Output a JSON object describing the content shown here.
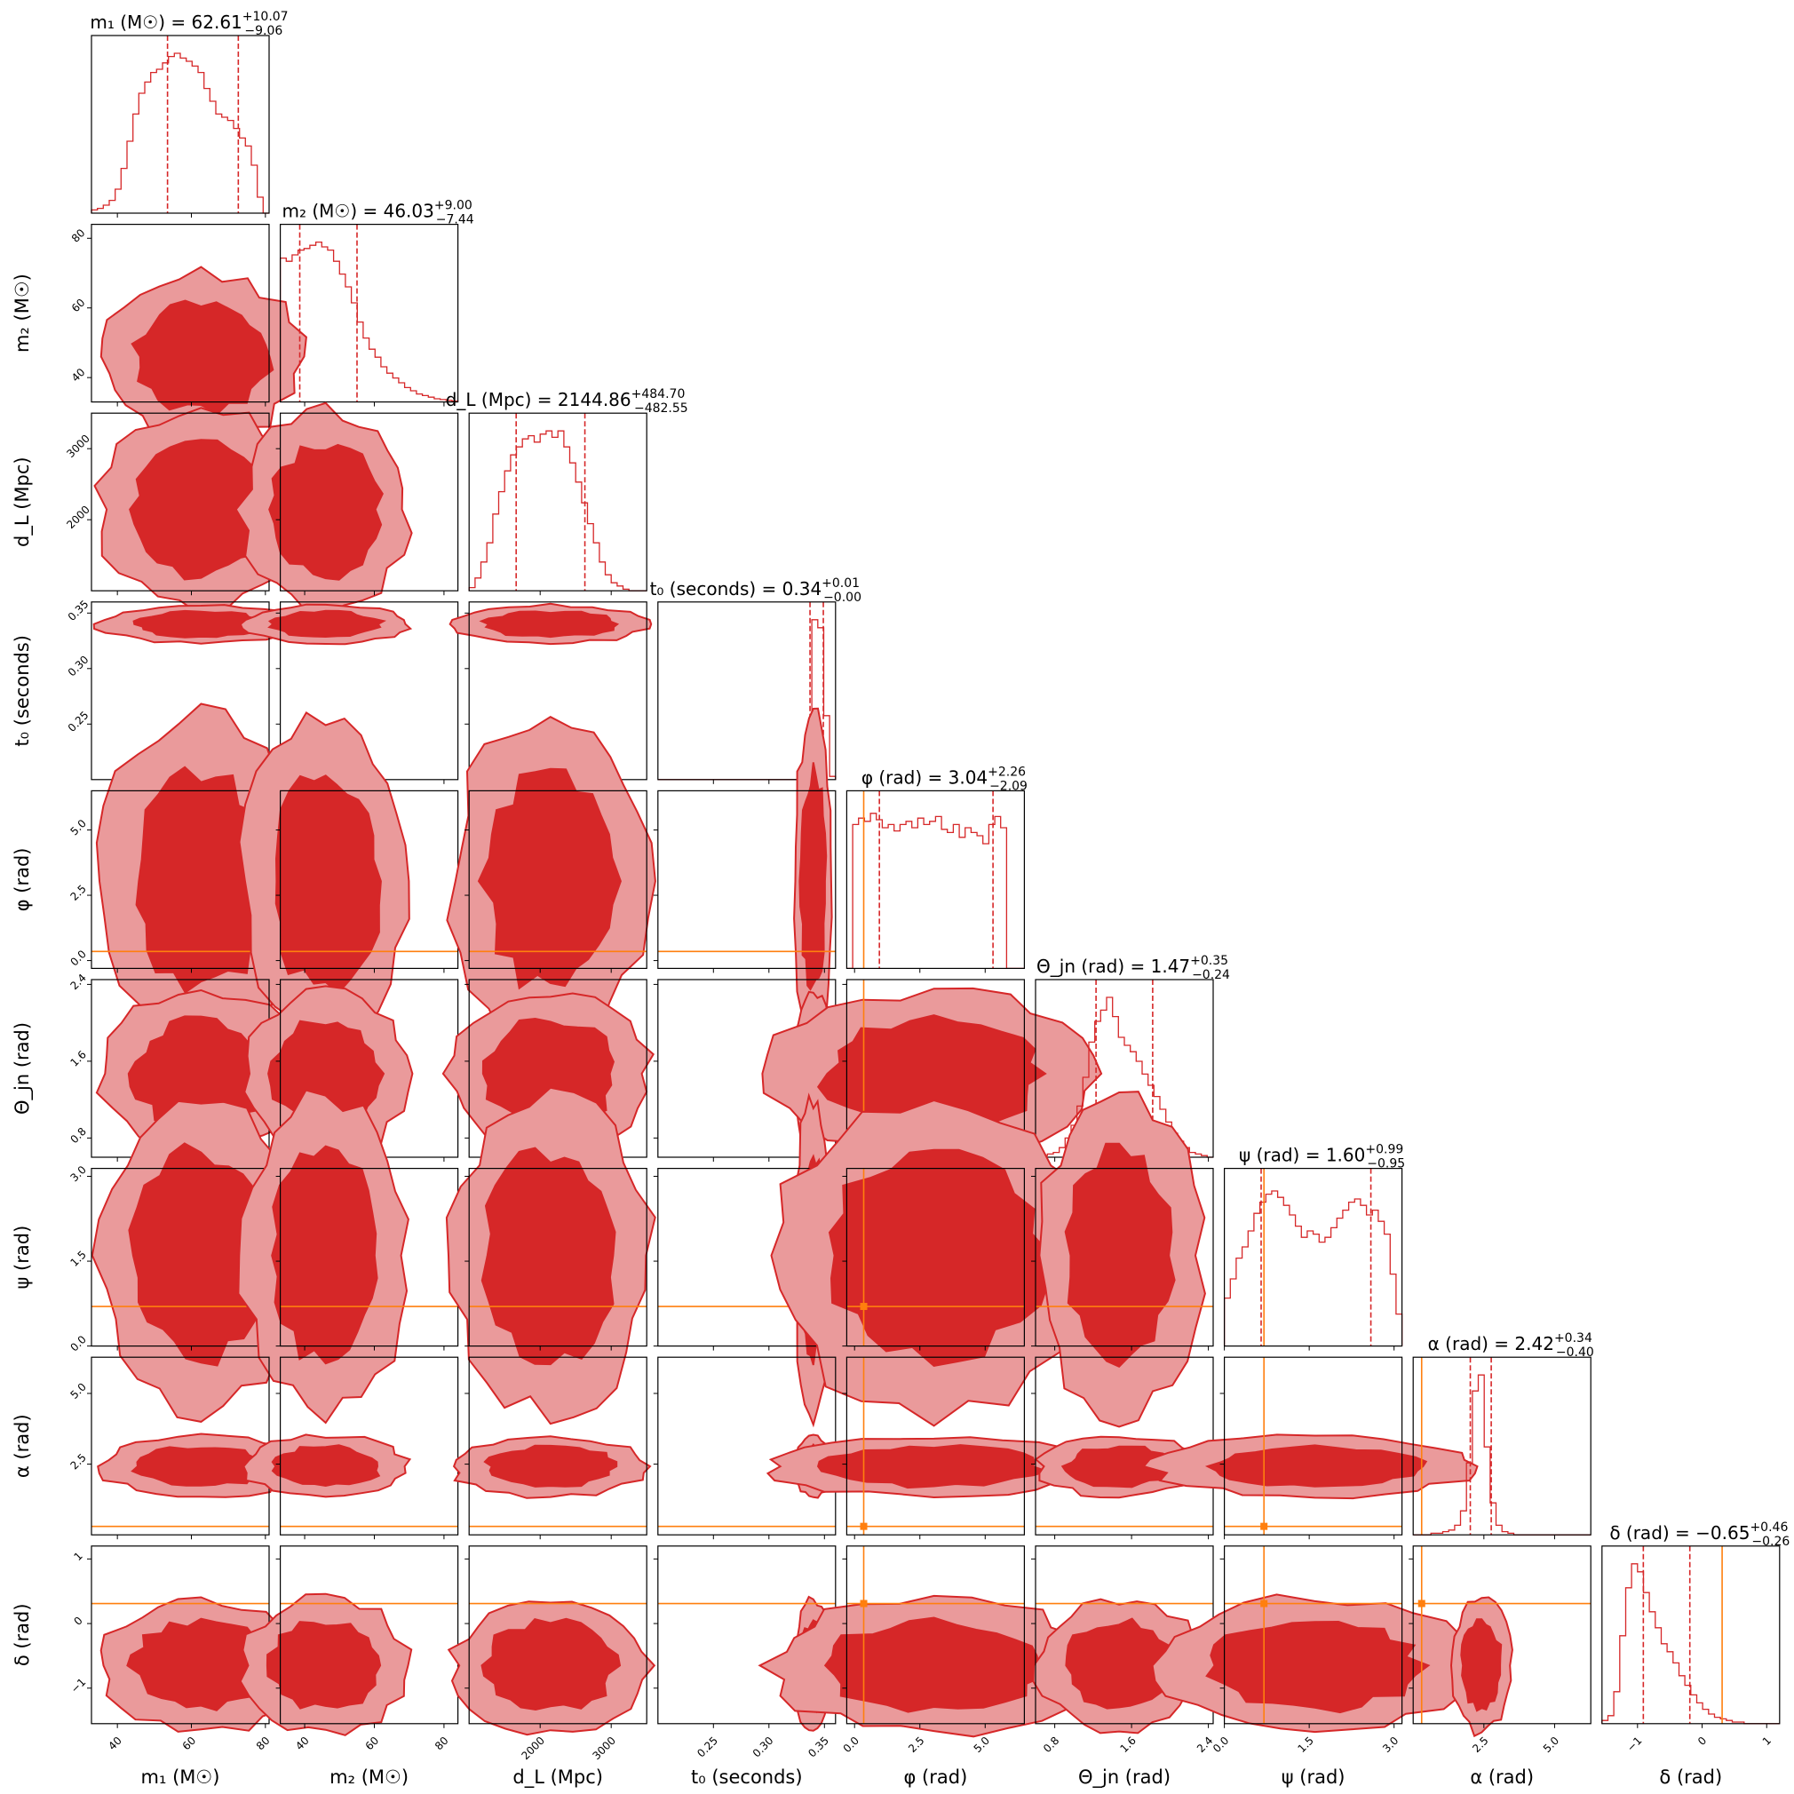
{
  "colors": {
    "posterior": "#d62728",
    "posterior_light": "#ea9a9b",
    "truth": "#ff7f0e",
    "axis": "#000000"
  },
  "chart_data": {
    "type": "corner",
    "parameters": [
      {
        "key": "m1",
        "axis_label": "m₁ (M☉)",
        "title": "m₁ (M☉) = 62.61",
        "title_plus": "+10.07",
        "title_minus": "−9.06",
        "range": [
          33,
          81
        ],
        "ticks": [
          40,
          60,
          80
        ],
        "tick_labels": [
          "40",
          "60",
          "80"
        ],
        "median": 62.61,
        "q_lo": 53.55,
        "q_hi": 72.68,
        "truth": null,
        "hist": [
          0.02,
          0.03,
          0.05,
          0.08,
          0.15,
          0.28,
          0.45,
          0.62,
          0.75,
          0.82,
          0.88,
          0.9,
          0.94,
          0.98,
          1.0,
          0.97,
          0.95,
          0.92,
          0.88,
          0.78,
          0.7,
          0.62,
          0.6,
          0.58,
          0.53,
          0.47,
          0.42,
          0.3,
          0.1,
          0.0
        ]
      },
      {
        "key": "m2",
        "axis_label": "m₂ (M☉)",
        "title": "m₂ (M☉) = 46.03",
        "title_plus": "+9.00",
        "title_minus": "−7.44",
        "range": [
          33,
          84
        ],
        "ticks": [
          40,
          60,
          80
        ],
        "tick_labels": [
          "40",
          "60",
          "80"
        ],
        "median": 46.03,
        "q_lo": 38.59,
        "q_hi": 55.03,
        "truth": null,
        "hist": [
          0.9,
          0.88,
          0.92,
          0.95,
          0.96,
          0.98,
          1.0,
          0.97,
          0.95,
          0.88,
          0.8,
          0.72,
          0.62,
          0.5,
          0.4,
          0.33,
          0.28,
          0.22,
          0.18,
          0.15,
          0.12,
          0.09,
          0.07,
          0.05,
          0.04,
          0.03,
          0.02,
          0.015,
          0.01,
          0.005
        ]
      },
      {
        "key": "dL",
        "axis_label": "d_L (Mpc)",
        "title": "d_L (Mpc) = 2144.86",
        "title_plus": "+484.70",
        "title_minus": "−482.55",
        "range": [
          1000,
          3500
        ],
        "ticks": [
          2000,
          3000
        ],
        "tick_labels": [
          "2000",
          "3000"
        ],
        "median": 2144.86,
        "q_lo": 1662.31,
        "q_hi": 2629.56,
        "truth": null,
        "hist": [
          0.02,
          0.08,
          0.18,
          0.3,
          0.48,
          0.62,
          0.75,
          0.85,
          0.9,
          0.95,
          0.97,
          0.93,
          0.98,
          1.0,
          0.96,
          1.0,
          0.9,
          0.8,
          0.68,
          0.55,
          0.42,
          0.3,
          0.18,
          0.1,
          0.05,
          0.03,
          0.01,
          0.0,
          0.0,
          0.0
        ]
      },
      {
        "key": "t0",
        "axis_label": "t₀ (seconds)",
        "title": "t₀ (seconds) = 0.34",
        "title_plus": "+0.01",
        "title_minus": "−0.00",
        "range": [
          0.2,
          0.36
        ],
        "ticks": [
          0.25,
          0.3,
          0.35
        ],
        "tick_labels": [
          "0.25",
          "0.30",
          "0.35"
        ],
        "median": 0.34,
        "q_lo": 0.337,
        "q_hi": 0.349,
        "truth": null,
        "hist": [
          0,
          0,
          0,
          0,
          0,
          0,
          0,
          0,
          0,
          0,
          0,
          0,
          0,
          0,
          0,
          0,
          0,
          0,
          0,
          0,
          0,
          0,
          0,
          0,
          0.05,
          0.3,
          1.0,
          0.95,
          0.4,
          0.02
        ]
      },
      {
        "key": "phi",
        "axis_label": "φ (rad)",
        "title": "φ (rad) = 3.04",
        "title_plus": "+2.26",
        "title_minus": "−2.09",
        "range": [
          -0.3,
          6.5
        ],
        "ticks": [
          0,
          2.5,
          5.0
        ],
        "tick_labels": [
          "0.0",
          "2.5",
          "5.0"
        ],
        "median": 3.04,
        "q_lo": 0.95,
        "q_hi": 5.3,
        "truth": 0.35,
        "hist": [
          0.0,
          0.9,
          0.94,
          0.92,
          0.97,
          0.93,
          0.88,
          0.9,
          0.86,
          0.9,
          0.92,
          0.88,
          0.94,
          0.9,
          0.92,
          0.95,
          0.87,
          0.85,
          0.9,
          0.82,
          0.88,
          0.85,
          0.83,
          0.78,
          0.9,
          0.95,
          0.88,
          0.0,
          0.0,
          0.0
        ]
      },
      {
        "key": "theta_jn",
        "axis_label": "Θ_jn (rad)",
        "title": "Θ_jn (rad) = 1.47",
        "title_plus": "+0.35",
        "title_minus": "−0.24",
        "range": [
          0.6,
          2.45
        ],
        "ticks": [
          0.8,
          1.6,
          2.4
        ],
        "tick_labels": [
          "0.8",
          "1.6",
          "2.4"
        ],
        "median": 1.47,
        "q_lo": 1.23,
        "q_hi": 1.82,
        "truth": null,
        "hist": [
          0.0,
          0.01,
          0.02,
          0.03,
          0.06,
          0.12,
          0.2,
          0.32,
          0.5,
          0.72,
          0.85,
          0.92,
          1.0,
          0.88,
          0.75,
          0.7,
          0.66,
          0.6,
          0.52,
          0.45,
          0.38,
          0.3,
          0.22,
          0.15,
          0.1,
          0.06,
          0.03,
          0.02,
          0.01,
          0.0
        ]
      },
      {
        "key": "psi",
        "axis_label": "ψ (rad)",
        "title": "ψ (rad) = 1.60",
        "title_plus": "+0.99",
        "title_minus": "−0.95",
        "range": [
          0,
          3.14
        ],
        "ticks": [
          0,
          1.5,
          3.0
        ],
        "tick_labels": [
          "0.0",
          "1.5",
          "3.0"
        ],
        "median": 1.6,
        "q_lo": 0.65,
        "q_hi": 2.59,
        "truth": 0.7,
        "hist": [
          0.3,
          0.42,
          0.55,
          0.62,
          0.72,
          0.83,
          0.9,
          0.95,
          0.97,
          0.93,
          0.88,
          0.82,
          0.75,
          0.68,
          0.72,
          0.7,
          0.65,
          0.68,
          0.74,
          0.8,
          0.85,
          0.9,
          0.92,
          0.88,
          0.82,
          0.85,
          0.78,
          0.7,
          0.45,
          0.2
        ]
      },
      {
        "key": "alpha",
        "axis_label": "α (rad)",
        "title": "α (rad) = 2.42",
        "title_plus": "+0.34",
        "title_minus": "−0.40",
        "range": [
          0,
          6.28
        ],
        "ticks": [
          2.5,
          5.0
        ],
        "tick_labels": [
          "2.5",
          "5.0"
        ],
        "median": 2.42,
        "q_lo": 2.02,
        "q_hi": 2.76,
        "truth": 0.3,
        "hist": [
          0.0,
          0.0,
          0.0,
          0.01,
          0.01,
          0.02,
          0.03,
          0.06,
          0.15,
          0.45,
          0.9,
          1.0,
          0.55,
          0.2,
          0.06,
          0.02,
          0.01,
          0.0,
          0.0,
          0.0,
          0.0,
          0.0,
          0.0,
          0.0,
          0.0,
          0.0,
          0.0,
          0.0,
          0.0,
          0.0
        ]
      },
      {
        "key": "delta",
        "axis_label": "δ (rad)",
        "title": "δ (rad) = −0.65",
        "title_plus": "+0.46",
        "title_minus": "−0.26",
        "range": [
          -1.55,
          1.2
        ],
        "ticks": [
          -1,
          0,
          1
        ],
        "tick_labels": [
          "−1",
          "0",
          "1"
        ],
        "median": -0.65,
        "q_lo": -0.91,
        "q_hi": -0.19,
        "truth": 0.31,
        "hist": [
          0.02,
          0.05,
          0.2,
          0.55,
          0.85,
          1.0,
          0.95,
          0.82,
          0.7,
          0.6,
          0.5,
          0.45,
          0.38,
          0.3,
          0.24,
          0.18,
          0.13,
          0.09,
          0.06,
          0.04,
          0.03,
          0.02,
          0.01,
          0.01,
          0.0,
          0.0,
          0.0,
          0.0,
          0.0,
          0.0
        ]
      }
    ]
  }
}
